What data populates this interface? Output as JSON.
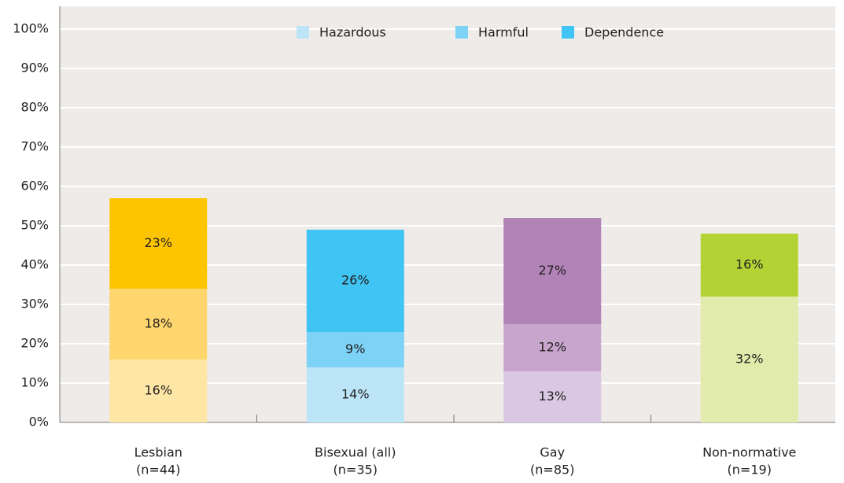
{
  "chart_data": {
    "type": "stacked_bar",
    "categories": [
      "Lesbian",
      "Bisexual (all)",
      "Gay",
      "Non-normative"
    ],
    "category_notes": [
      "(n=44)",
      "(n=35)",
      "(n=85)",
      "(n=19)"
    ],
    "series": [
      {
        "name": "Hazardous",
        "color": "#bde5f8",
        "bar_colors": [
          "#fde6a6",
          "#bde5f8",
          "#dac8e2",
          "#e1ebab"
        ],
        "values": [
          16,
          14,
          13,
          32
        ],
        "value_labels": [
          "16%",
          "14%",
          "13%",
          "32%"
        ]
      },
      {
        "name": "Harmful",
        "color": "#7dd3f5",
        "bar_colors": [
          "#fed66d",
          "#7dd3f5",
          "#c7a5cd",
          "#cfe27a"
        ],
        "values": [
          18,
          9,
          12,
          null
        ],
        "value_labels": [
          "18%",
          "9%",
          "12%",
          null
        ]
      },
      {
        "name": "Dependence",
        "color": "#40c4f3",
        "bar_colors": [
          "#fdc500",
          "#40c4f3",
          "#b183b7",
          "#b3d335"
        ],
        "values": [
          23,
          26,
          27,
          16
        ],
        "value_labels": [
          "23%",
          "26%",
          "27%",
          "16%"
        ]
      }
    ],
    "ylim": [
      0,
      100
    ],
    "yticks": [
      {
        "value": 0,
        "label": "0%"
      },
      {
        "value": 10,
        "label": "10%"
      },
      {
        "value": 20,
        "label": "20%"
      },
      {
        "value": 30,
        "label": "30%"
      },
      {
        "value": 40,
        "label": "40%"
      },
      {
        "value": 50,
        "label": "50%"
      },
      {
        "value": 60,
        "label": "60%"
      },
      {
        "value": 70,
        "label": "70%"
      },
      {
        "value": 80,
        "label": "80%"
      },
      {
        "value": 90,
        "label": "90%"
      },
      {
        "value": 100,
        "label": "100%"
      }
    ],
    "grid": true
  }
}
